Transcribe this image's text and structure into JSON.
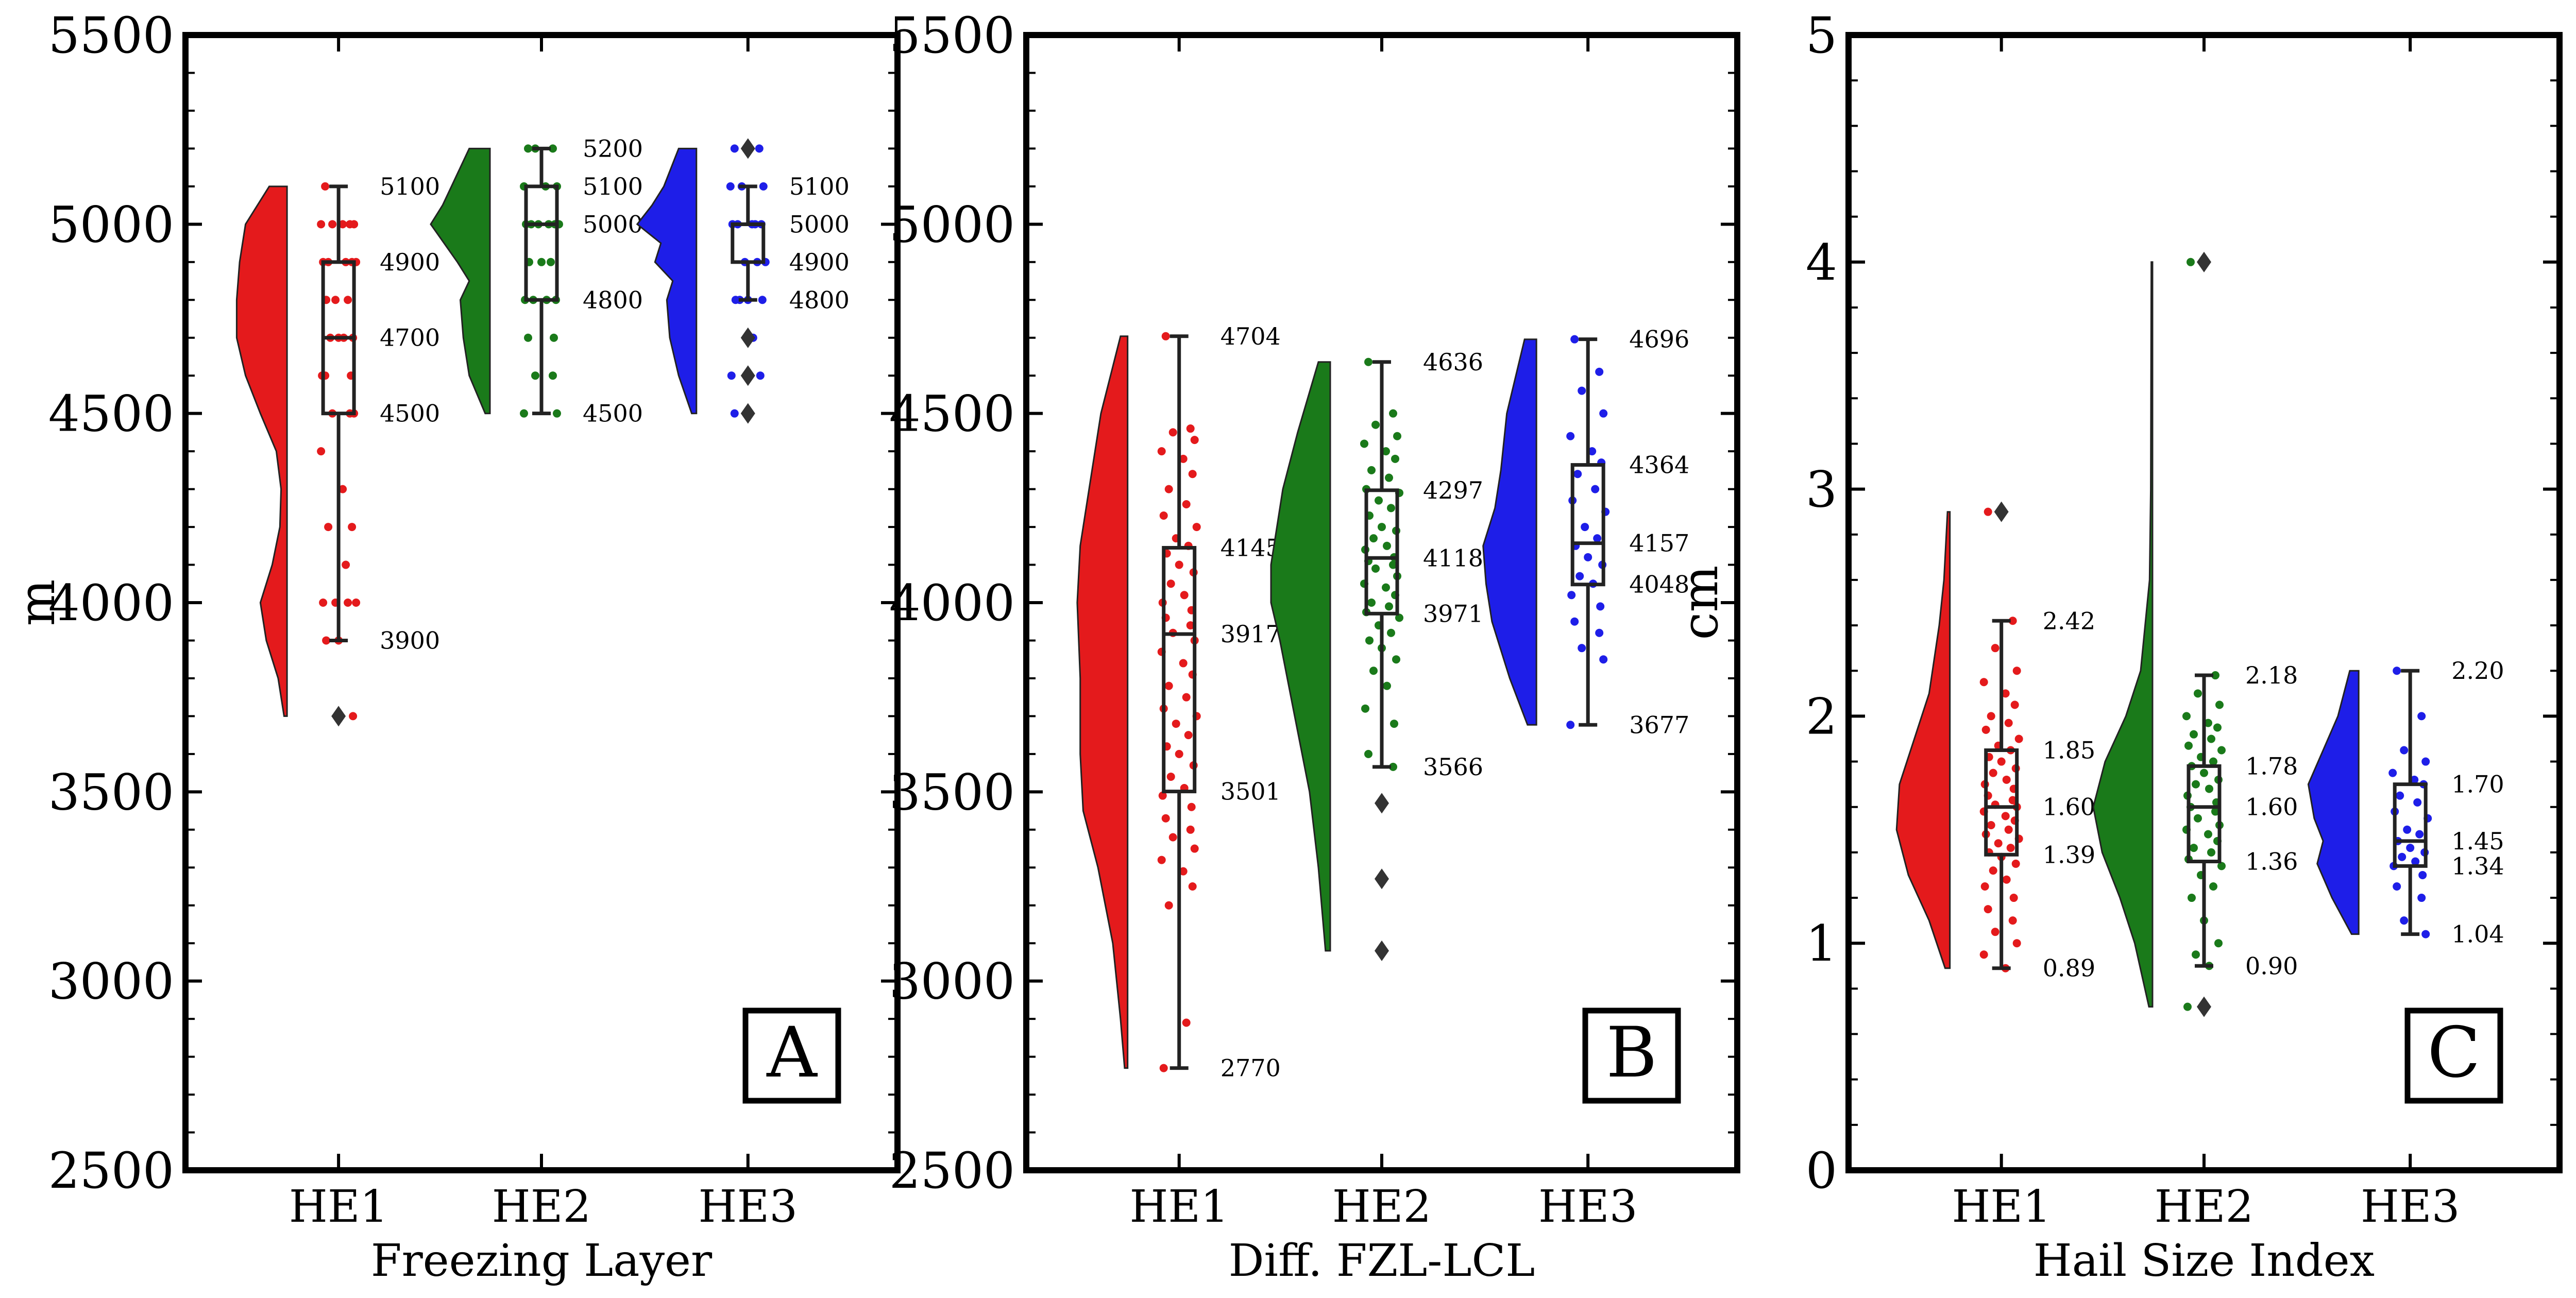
{
  "chart_data": [
    {
      "type": "raincloud",
      "panel_label": "A",
      "xlabel": "Freezing Layer",
      "ylabel": "m",
      "ylim": [
        2500,
        5500
      ],
      "yticks": [
        "2500",
        "3000",
        "3500",
        "4000",
        "4500",
        "5000",
        "5500"
      ],
      "categories": [
        "HE1",
        "HE2",
        "HE3"
      ],
      "groups": [
        {
          "name": "HE1",
          "color": "#e41a1c",
          "stats": {
            "min": 3900,
            "q1": 4500,
            "median": 4700,
            "q3": 4900,
            "max": 5100
          },
          "annotations": [
            "5100",
            "4900",
            "4700",
            "4500",
            "3900"
          ],
          "outliers": [
            3700
          ],
          "density": [
            [
              3700,
              0.05
            ],
            [
              3800,
              0.15
            ],
            [
              3900,
              0.35
            ],
            [
              4000,
              0.45
            ],
            [
              4100,
              0.25
            ],
            [
              4200,
              0.12
            ],
            [
              4300,
              0.1
            ],
            [
              4400,
              0.18
            ],
            [
              4500,
              0.45
            ],
            [
              4600,
              0.7
            ],
            [
              4700,
              0.85
            ],
            [
              4800,
              0.85
            ],
            [
              4900,
              0.8
            ],
            [
              5000,
              0.7
            ],
            [
              5100,
              0.3
            ]
          ],
          "points": [
            5100,
            5000,
            5000,
            5000,
            5000,
            5000,
            4900,
            4900,
            4900,
            4900,
            4900,
            4800,
            4800,
            4800,
            4700,
            4700,
            4700,
            4700,
            4600,
            4600,
            4600,
            4500,
            4500,
            4500,
            4400,
            4300,
            4200,
            4200,
            4100,
            4000,
            4000,
            4000,
            4000,
            3900,
            3900,
            3700
          ]
        },
        {
          "name": "HE2",
          "color": "#1a7a1a",
          "stats": {
            "min": 4500,
            "q1": 4800,
            "median": 5000,
            "q3": 5100,
            "max": 5200
          },
          "annotations": [
            "5200",
            "5100",
            "5000",
            "4800",
            "4500"
          ],
          "outliers": [],
          "density": [
            [
              4500,
              0.08
            ],
            [
              4600,
              0.35
            ],
            [
              4700,
              0.45
            ],
            [
              4800,
              0.5
            ],
            [
              4850,
              0.35
            ],
            [
              4900,
              0.55
            ],
            [
              5000,
              1.0
            ],
            [
              5050,
              0.8
            ],
            [
              5100,
              0.65
            ],
            [
              5200,
              0.35
            ]
          ],
          "points": [
            5200,
            5200,
            5200,
            5100,
            5100,
            5100,
            5000,
            5000,
            5000,
            5000,
            5000,
            5000,
            4900,
            4900,
            4900,
            4800,
            4800,
            4800,
            4800,
            4700,
            4700,
            4600,
            4600,
            4500,
            4500
          ]
        },
        {
          "name": "HE3",
          "color": "#1e1ee8",
          "stats": {
            "min": 4800,
            "q1": 4900,
            "median": 5000,
            "q3": 5000,
            "max": 5100
          },
          "annotations": [
            "5100",
            "5000",
            "4900",
            "4800"
          ],
          "outliers": [
            5200,
            4700,
            4600,
            4500
          ],
          "density": [
            [
              4500,
              0.08
            ],
            [
              4600,
              0.3
            ],
            [
              4700,
              0.45
            ],
            [
              4800,
              0.5
            ],
            [
              4850,
              0.4
            ],
            [
              4900,
              0.7
            ],
            [
              4950,
              0.6
            ],
            [
              5000,
              1.0
            ],
            [
              5050,
              0.75
            ],
            [
              5100,
              0.55
            ],
            [
              5200,
              0.3
            ]
          ],
          "points": [
            5200,
            5200,
            5100,
            5100,
            5100,
            5000,
            5000,
            5000,
            5000,
            5000,
            4900,
            4900,
            4900,
            4800,
            4800,
            4800,
            4800,
            4700,
            4600,
            4600,
            4500
          ]
        }
      ]
    },
    {
      "type": "raincloud",
      "panel_label": "B",
      "xlabel": "Diff. FZL-LCL",
      "ylabel": "",
      "ylim": [
        2500,
        5500
      ],
      "yticks": [
        "2500",
        "3000",
        "3500",
        "4000",
        "4500",
        "5000",
        "5500"
      ],
      "categories": [
        "HE1",
        "HE2",
        "HE3"
      ],
      "groups": [
        {
          "name": "HE1",
          "color": "#e41a1c",
          "stats": {
            "min": 2770,
            "q1": 3501,
            "median": 3917,
            "q3": 4145,
            "max": 4704
          },
          "annotations": [
            "4704",
            "4145",
            "3917",
            "3501",
            "2770"
          ],
          "outliers": [],
          "density": [
            [
              2770,
              0.05
            ],
            [
              2900,
              0.12
            ],
            [
              3100,
              0.25
            ],
            [
              3300,
              0.5
            ],
            [
              3450,
              0.75
            ],
            [
              3600,
              0.8
            ],
            [
              3800,
              0.8
            ],
            [
              4000,
              0.85
            ],
            [
              4150,
              0.8
            ],
            [
              4300,
              0.65
            ],
            [
              4500,
              0.45
            ],
            [
              4704,
              0.12
            ]
          ],
          "points": [
            4704,
            4460,
            4450,
            4430,
            4400,
            4380,
            4340,
            4300,
            4260,
            4230,
            4200,
            4170,
            4150,
            4130,
            4100,
            4080,
            4050,
            4020,
            4000,
            3980,
            3960,
            3940,
            3920,
            3900,
            3870,
            3840,
            3810,
            3780,
            3750,
            3720,
            3700,
            3680,
            3650,
            3620,
            3600,
            3570,
            3540,
            3510,
            3490,
            3460,
            3430,
            3400,
            3380,
            3350,
            3320,
            3290,
            3250,
            3200,
            2890,
            2770
          ]
        },
        {
          "name": "HE2",
          "color": "#1a7a1a",
          "stats": {
            "min": 3566,
            "q1": 3971,
            "median": 4118,
            "q3": 4297,
            "max": 4636
          },
          "annotations": [
            "4636",
            "4297",
            "4118",
            "3971",
            "3566"
          ],
          "outliers": [
            3470,
            3270,
            3080
          ],
          "density": [
            [
              3080,
              0.08
            ],
            [
              3300,
              0.2
            ],
            [
              3500,
              0.35
            ],
            [
              3700,
              0.6
            ],
            [
              3900,
              0.85
            ],
            [
              4000,
              1.0
            ],
            [
              4100,
              1.0
            ],
            [
              4200,
              0.9
            ],
            [
              4300,
              0.8
            ],
            [
              4450,
              0.55
            ],
            [
              4636,
              0.2
            ]
          ],
          "points": [
            4636,
            4500,
            4470,
            4440,
            4420,
            4400,
            4380,
            4350,
            4330,
            4300,
            4290,
            4270,
            4250,
            4230,
            4200,
            4190,
            4170,
            4150,
            4140,
            4120,
            4110,
            4100,
            4090,
            4070,
            4050,
            4040,
            4020,
            4000,
            3990,
            3975,
            3960,
            3940,
            3920,
            3900,
            3880,
            3850,
            3820,
            3780,
            3720,
            3680,
            3600,
            3566
          ]
        },
        {
          "name": "HE3",
          "color": "#1e1ee8",
          "stats": {
            "min": 3677,
            "q1": 4048,
            "median": 4157,
            "q3": 4364,
            "max": 4696
          },
          "annotations": [
            "4696",
            "4364",
            "4157",
            "4048",
            "3677"
          ],
          "outliers": [],
          "density": [
            [
              3677,
              0.15
            ],
            [
              3800,
              0.45
            ],
            [
              3950,
              0.75
            ],
            [
              4050,
              0.85
            ],
            [
              4150,
              0.9
            ],
            [
              4250,
              0.7
            ],
            [
              4350,
              0.6
            ],
            [
              4500,
              0.5
            ],
            [
              4696,
              0.2
            ]
          ],
          "points": [
            4696,
            4610,
            4560,
            4500,
            4440,
            4400,
            4370,
            4340,
            4300,
            4270,
            4240,
            4200,
            4170,
            4150,
            4120,
            4100,
            4070,
            4050,
            4020,
            3990,
            3950,
            3920,
            3880,
            3850,
            3677
          ]
        }
      ]
    },
    {
      "type": "raincloud",
      "panel_label": "C",
      "xlabel": "Hail Size Index",
      "ylabel": "cm",
      "ylim": [
        0,
        5
      ],
      "yticks": [
        "0",
        "1",
        "2",
        "3",
        "4",
        "5"
      ],
      "categories": [
        "HE1",
        "HE2",
        "HE3"
      ],
      "groups": [
        {
          "name": "HE1",
          "color": "#e41a1c",
          "stats": {
            "min": 0.89,
            "q1": 1.39,
            "median": 1.6,
            "q3": 1.85,
            "max": 2.42
          },
          "annotations": [
            "2.42",
            "1.85",
            "1.60",
            "1.39",
            "0.89"
          ],
          "outliers": [
            2.9
          ],
          "density": [
            [
              0.89,
              0.08
            ],
            [
              1.1,
              0.35
            ],
            [
              1.3,
              0.7
            ],
            [
              1.5,
              0.9
            ],
            [
              1.7,
              0.85
            ],
            [
              1.9,
              0.6
            ],
            [
              2.1,
              0.35
            ],
            [
              2.4,
              0.18
            ],
            [
              2.6,
              0.1
            ],
            [
              2.9,
              0.04
            ]
          ],
          "points": [
            2.9,
            2.42,
            2.3,
            2.2,
            2.15,
            2.1,
            2.05,
            2.0,
            1.97,
            1.94,
            1.9,
            1.87,
            1.85,
            1.82,
            1.8,
            1.77,
            1.75,
            1.72,
            1.7,
            1.68,
            1.65,
            1.63,
            1.61,
            1.6,
            1.58,
            1.56,
            1.54,
            1.52,
            1.5,
            1.48,
            1.46,
            1.44,
            1.42,
            1.4,
            1.38,
            1.35,
            1.32,
            1.28,
            1.25,
            1.2,
            1.15,
            1.1,
            1.05,
            1.0,
            0.95,
            0.89
          ]
        },
        {
          "name": "HE2",
          "color": "#1a7a1a",
          "stats": {
            "min": 0.9,
            "q1": 1.36,
            "median": 1.6,
            "q3": 1.78,
            "max": 2.18
          },
          "annotations": [
            "2.18",
            "1.78",
            "1.60",
            "1.36",
            "0.90"
          ],
          "outliers": [
            4.0,
            0.72
          ],
          "density": [
            [
              0.72,
              0.06
            ],
            [
              1.0,
              0.3
            ],
            [
              1.2,
              0.55
            ],
            [
              1.4,
              0.85
            ],
            [
              1.6,
              1.0
            ],
            [
              1.8,
              0.8
            ],
            [
              2.0,
              0.45
            ],
            [
              2.2,
              0.2
            ],
            [
              2.6,
              0.05
            ],
            [
              3.0,
              0.03
            ],
            [
              4.0,
              0.02
            ]
          ],
          "points": [
            4.0,
            2.18,
            2.1,
            2.05,
            2.0,
            1.97,
            1.95,
            1.92,
            1.9,
            1.87,
            1.85,
            1.82,
            1.8,
            1.78,
            1.75,
            1.72,
            1.7,
            1.68,
            1.65,
            1.62,
            1.6,
            1.58,
            1.55,
            1.52,
            1.5,
            1.48,
            1.45,
            1.42,
            1.4,
            1.37,
            1.34,
            1.3,
            1.25,
            1.2,
            1.1,
            1.0,
            0.95,
            0.9,
            0.72
          ]
        },
        {
          "name": "HE3",
          "color": "#1e1ee8",
          "stats": {
            "min": 1.04,
            "q1": 1.34,
            "median": 1.45,
            "q3": 1.7,
            "max": 2.2
          },
          "annotations": [
            "2.20",
            "1.70",
            "1.45",
            "1.34",
            "1.04"
          ],
          "outliers": [],
          "density": [
            [
              1.04,
              0.12
            ],
            [
              1.2,
              0.45
            ],
            [
              1.35,
              0.7
            ],
            [
              1.45,
              0.6
            ],
            [
              1.55,
              0.75
            ],
            [
              1.7,
              0.85
            ],
            [
              1.85,
              0.6
            ],
            [
              2.0,
              0.35
            ],
            [
              2.2,
              0.15
            ]
          ],
          "points": [
            2.2,
            2.0,
            1.85,
            1.8,
            1.75,
            1.72,
            1.7,
            1.65,
            1.62,
            1.58,
            1.55,
            1.5,
            1.48,
            1.45,
            1.42,
            1.4,
            1.38,
            1.36,
            1.34,
            1.3,
            1.25,
            1.2,
            1.1,
            1.04
          ]
        }
      ]
    }
  ]
}
